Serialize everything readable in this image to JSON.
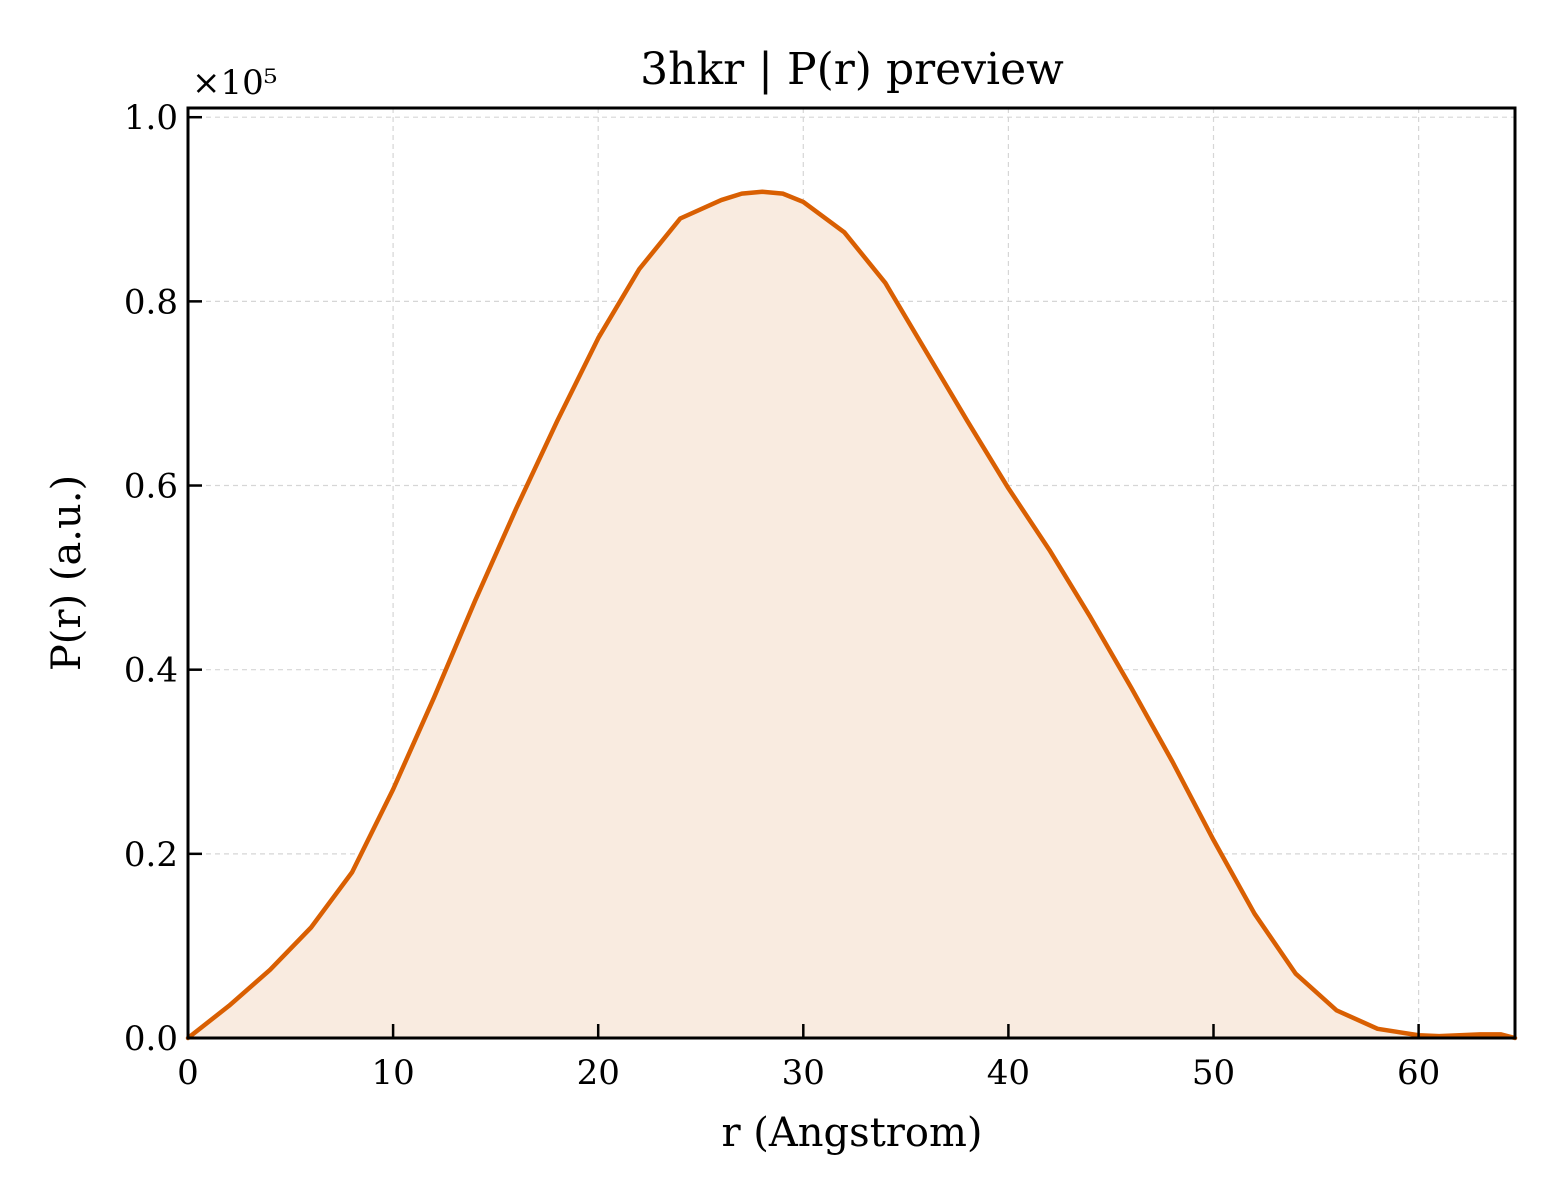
{
  "chart_data": {
    "type": "area",
    "title": "3hkr | P(r) preview",
    "xlabel": "r (Angstrom)",
    "ylabel": "P(r) (a.u.)",
    "y_scale_multiplier": "×10⁵",
    "xlim": [
      0,
      64.7
    ],
    "ylim": [
      0,
      1.01
    ],
    "x_ticks": [
      0,
      10,
      20,
      30,
      40,
      50,
      60
    ],
    "x_tick_labels": [
      "0",
      "10",
      "20",
      "30",
      "40",
      "50",
      "60"
    ],
    "y_ticks": [
      0.0,
      0.2,
      0.4,
      0.6,
      0.8,
      1.0
    ],
    "y_tick_labels": [
      "0.0",
      "0.2",
      "0.4",
      "0.6",
      "0.8",
      "1.0"
    ],
    "grid": true,
    "colors": {
      "line": "#d95f02",
      "fill": "#f9ebe0"
    },
    "series": [
      {
        "x": [
          0,
          2,
          4,
          6,
          8,
          10,
          12,
          14,
          16,
          18,
          20,
          22,
          24,
          26,
          27,
          28,
          29,
          30,
          32,
          34,
          36,
          38,
          40,
          42,
          44,
          46,
          48,
          50,
          52,
          54,
          56,
          58,
          60,
          61,
          62,
          63,
          64,
          64.7
        ],
        "y": [
          0.0,
          0.035,
          0.074,
          0.12,
          0.18,
          0.27,
          0.37,
          0.475,
          0.575,
          0.67,
          0.76,
          0.835,
          0.89,
          0.91,
          0.917,
          0.919,
          0.917,
          0.908,
          0.875,
          0.82,
          0.745,
          0.67,
          0.597,
          0.53,
          0.457,
          0.38,
          0.3,
          0.215,
          0.135,
          0.07,
          0.03,
          0.01,
          0.003,
          0.002,
          0.003,
          0.004,
          0.004,
          0.0
        ]
      }
    ]
  }
}
